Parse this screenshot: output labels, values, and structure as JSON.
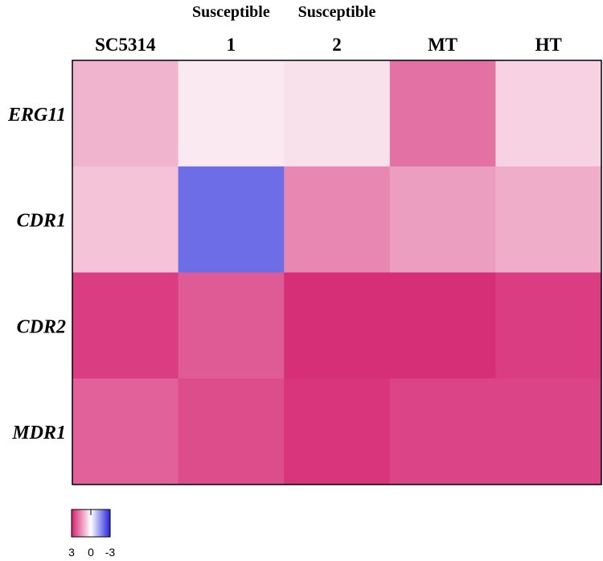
{
  "chart_data": {
    "type": "heatmap",
    "title": "",
    "columns": [
      {
        "top": "",
        "bottom": "SC5314"
      },
      {
        "top": "Susceptible",
        "bottom": "1"
      },
      {
        "top": "Susceptible",
        "bottom": "2"
      },
      {
        "top": "",
        "bottom": "MT"
      },
      {
        "top": "",
        "bottom": "HT"
      }
    ],
    "rows": [
      "ERG11",
      "CDR1",
      "CDR2",
      "MDR1"
    ],
    "values": [
      [
        1.0,
        0.3,
        0.4,
        1.9,
        0.6
      ],
      [
        0.8,
        -2.0,
        1.6,
        1.3,
        1.1
      ],
      [
        2.6,
        2.2,
        2.8,
        2.8,
        2.6
      ],
      [
        2.1,
        2.4,
        2.7,
        2.5,
        2.5
      ]
    ],
    "color_scale": {
      "min": -3,
      "max": 3,
      "colors": {
        "high": "#d41f6e",
        "mid": "#ffffff",
        "low": "#2424dc"
      },
      "tick_labels": [
        "3",
        "0",
        "-3"
      ]
    }
  }
}
